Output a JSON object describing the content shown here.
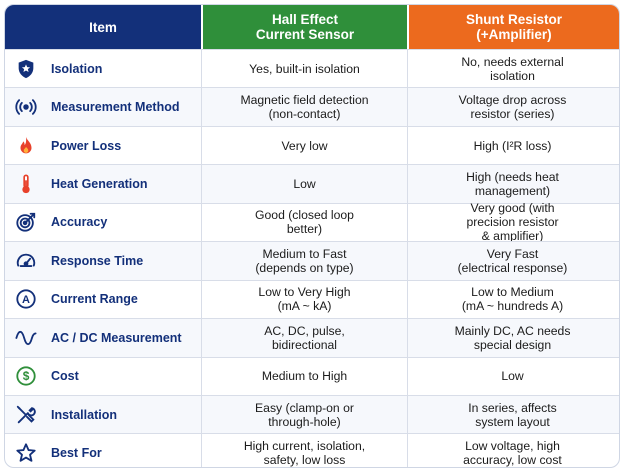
{
  "header": {
    "item": "Item",
    "hall": [
      "Hall Effect",
      "Current Sensor"
    ],
    "shunt": [
      "Shunt Resistor",
      "(+Amplifier)"
    ]
  },
  "rows": [
    {
      "icon": "shield-icon",
      "label": "Isolation",
      "hall": [
        "Yes, built-in isolation"
      ],
      "shunt": [
        "No, needs external",
        "isolation"
      ]
    },
    {
      "icon": "sensor-signal-icon",
      "label": "Measurement Method",
      "hall": [
        "Magnetic field detection",
        "(non-contact)"
      ],
      "shunt": [
        "Voltage drop across",
        "resistor (series)"
      ]
    },
    {
      "icon": "flame-icon",
      "label": "Power Loss",
      "hall": [
        "Very low"
      ],
      "shunt": [
        "High (I²R loss)"
      ]
    },
    {
      "icon": "thermometer-icon",
      "label": "Heat Generation",
      "hall": [
        "Low"
      ],
      "shunt": [
        "High (needs heat",
        "management)"
      ]
    },
    {
      "icon": "target-icon",
      "label": "Accuracy",
      "hall": [
        "Good (closed loop",
        "better)"
      ],
      "shunt": [
        "Very good (with",
        "precision resistor",
        "& amplifier)"
      ]
    },
    {
      "icon": "speedometer-icon",
      "label": "Response Time",
      "hall": [
        "Medium to Fast",
        "(depends on type)"
      ],
      "shunt": [
        "Very Fast",
        "(electrical response)"
      ]
    },
    {
      "icon": "ampere-icon",
      "label": "Current Range",
      "hall": [
        "Low to Very High",
        "(mA ~ kA)"
      ],
      "shunt": [
        "Low to Medium",
        "(mA ~ hundreds A)"
      ]
    },
    {
      "icon": "sine-wave-icon",
      "label": "AC / DC Measurement",
      "hall": [
        "AC, DC, pulse,",
        "bidirectional"
      ],
      "shunt": [
        "Mainly DC, AC needs",
        "special design"
      ]
    },
    {
      "icon": "dollar-icon",
      "label": "Cost",
      "hall": [
        "Medium to High"
      ],
      "shunt": [
        "Low"
      ]
    },
    {
      "icon": "tools-icon",
      "label": "Installation",
      "hall": [
        "Easy (clamp-on or",
        "through-hole)"
      ],
      "shunt": [
        "In series, affects",
        "system layout"
      ]
    },
    {
      "icon": "star-icon",
      "label": "Best For",
      "hall": [
        "High current, isolation,",
        "safety, low loss"
      ],
      "shunt": [
        "Low voltage, high",
        "accuracy, low cost"
      ]
    }
  ],
  "colors": {
    "navy": "#13307a",
    "green": "#2f8f3a",
    "orange": "#ec6a1e",
    "red": "#e8412a"
  }
}
